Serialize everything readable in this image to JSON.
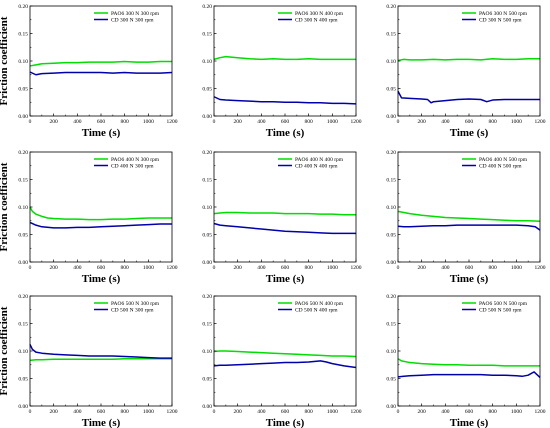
{
  "colors": {
    "pao6": "#00dd00",
    "cd": "#0000aa",
    "axis": "#000000"
  },
  "chart_data": [
    {
      "type": "line",
      "xlabel": "Time (s)",
      "ylabel": "Friction coefficient",
      "xlim": [
        0,
        1200
      ],
      "ylim": [
        0,
        0.2
      ],
      "xticks": [
        "0",
        "200",
        "400",
        "600",
        "800",
        "1000",
        "1200"
      ],
      "yticks": [
        "0.00",
        "0.05",
        "0.10",
        "0.15",
        "0.20"
      ],
      "legend_position": "top-right",
      "series": [
        {
          "name": "PAO6 300 N 300 rpm",
          "color": "#00dd00",
          "x": [
            0,
            50,
            100,
            200,
            300,
            400,
            500,
            600,
            700,
            800,
            900,
            1000,
            1100,
            1200
          ],
          "y": [
            0.091,
            0.093,
            0.095,
            0.096,
            0.097,
            0.097,
            0.098,
            0.098,
            0.098,
            0.099,
            0.098,
            0.098,
            0.099,
            0.099
          ]
        },
        {
          "name": "CD 300 N 300 rpm",
          "color": "#0000aa",
          "x": [
            0,
            50,
            100,
            200,
            300,
            400,
            500,
            600,
            700,
            800,
            900,
            1000,
            1100,
            1200
          ],
          "y": [
            0.08,
            0.075,
            0.077,
            0.078,
            0.079,
            0.079,
            0.079,
            0.079,
            0.078,
            0.079,
            0.078,
            0.078,
            0.078,
            0.079
          ]
        }
      ]
    },
    {
      "type": "line",
      "xlabel": "Time (s)",
      "ylabel": "",
      "xlim": [
        0,
        1200
      ],
      "ylim": [
        0,
        0.2
      ],
      "xticks": [
        "0",
        "200",
        "400",
        "600",
        "800",
        "1000",
        "1200"
      ],
      "yticks": [
        "0.00",
        "0.05",
        "0.10",
        "0.15",
        "0.20"
      ],
      "legend_position": "top-right",
      "series": [
        {
          "name": "PAO6 300 N 400 rpm",
          "color": "#00dd00",
          "x": [
            0,
            50,
            100,
            200,
            300,
            400,
            500,
            600,
            700,
            800,
            900,
            1000,
            1100,
            1200
          ],
          "y": [
            0.103,
            0.106,
            0.108,
            0.106,
            0.104,
            0.103,
            0.104,
            0.103,
            0.103,
            0.104,
            0.103,
            0.103,
            0.103,
            0.103
          ]
        },
        {
          "name": "CD 300 N 400 rpm",
          "color": "#0000aa",
          "x": [
            0,
            50,
            100,
            200,
            300,
            400,
            500,
            600,
            700,
            800,
            900,
            1000,
            1100,
            1200
          ],
          "y": [
            0.035,
            0.03,
            0.029,
            0.028,
            0.027,
            0.026,
            0.026,
            0.025,
            0.025,
            0.024,
            0.024,
            0.023,
            0.023,
            0.022
          ]
        }
      ]
    },
    {
      "type": "line",
      "xlabel": "Time (s)",
      "ylabel": "",
      "xlim": [
        0,
        1200
      ],
      "ylim": [
        0,
        0.2
      ],
      "xticks": [
        "0",
        "200",
        "400",
        "600",
        "800",
        "1000",
        "1200"
      ],
      "yticks": [
        "0.00",
        "0.05",
        "0.10",
        "0.15",
        "0.20"
      ],
      "legend_position": "top-right",
      "series": [
        {
          "name": "PAO6 300 N 500 rpm",
          "color": "#00dd00",
          "x": [
            0,
            50,
            100,
            200,
            300,
            400,
            500,
            600,
            700,
            800,
            900,
            1000,
            1100,
            1200
          ],
          "y": [
            0.101,
            0.103,
            0.102,
            0.102,
            0.103,
            0.102,
            0.103,
            0.103,
            0.102,
            0.104,
            0.103,
            0.103,
            0.104,
            0.104
          ]
        },
        {
          "name": "CD 300 N 500 rpm",
          "color": "#0000aa",
          "x": [
            0,
            30,
            100,
            200,
            250,
            280,
            300,
            400,
            500,
            600,
            700,
            750,
            800,
            900,
            1000,
            1100,
            1200
          ],
          "y": [
            0.045,
            0.033,
            0.032,
            0.031,
            0.03,
            0.024,
            0.026,
            0.028,
            0.03,
            0.031,
            0.03,
            0.026,
            0.029,
            0.03,
            0.03,
            0.03,
            0.03
          ]
        }
      ]
    },
    {
      "type": "line",
      "xlabel": "Time (s)",
      "ylabel": "Friction coefficient",
      "xlim": [
        0,
        1200
      ],
      "ylim": [
        0,
        0.2
      ],
      "xticks": [
        "0",
        "200",
        "400",
        "600",
        "800",
        "1000",
        "1200"
      ],
      "yticks": [
        "0.00",
        "0.05",
        "0.10",
        "0.15",
        "0.20"
      ],
      "legend_position": "top-right",
      "series": [
        {
          "name": "PAO6 400 N 300 rpm",
          "color": "#00dd00",
          "x": [
            0,
            20,
            50,
            100,
            150,
            200,
            300,
            400,
            500,
            600,
            700,
            800,
            900,
            1000,
            1100,
            1200
          ],
          "y": [
            0.1,
            0.092,
            0.087,
            0.083,
            0.08,
            0.079,
            0.078,
            0.078,
            0.077,
            0.077,
            0.078,
            0.078,
            0.079,
            0.08,
            0.08,
            0.08
          ]
        },
        {
          "name": "CD 400 N 300 rpm",
          "color": "#0000aa",
          "x": [
            0,
            50,
            100,
            200,
            300,
            400,
            500,
            600,
            700,
            800,
            900,
            1000,
            1100,
            1200
          ],
          "y": [
            0.072,
            0.067,
            0.064,
            0.062,
            0.062,
            0.063,
            0.063,
            0.064,
            0.065,
            0.066,
            0.067,
            0.068,
            0.069,
            0.069
          ]
        }
      ]
    },
    {
      "type": "line",
      "xlabel": "Time (s)",
      "ylabel": "",
      "xlim": [
        0,
        1200
      ],
      "ylim": [
        0,
        0.2
      ],
      "xticks": [
        "0",
        "200",
        "400",
        "600",
        "800",
        "1000",
        "1200"
      ],
      "yticks": [
        "0.00",
        "0.05",
        "0.10",
        "0.15",
        "0.20"
      ],
      "legend_position": "top-right",
      "series": [
        {
          "name": "PAO6 400 N 400 rpm",
          "color": "#00dd00",
          "x": [
            0,
            50,
            100,
            200,
            300,
            400,
            500,
            600,
            700,
            800,
            900,
            1000,
            1100,
            1200
          ],
          "y": [
            0.088,
            0.089,
            0.09,
            0.09,
            0.089,
            0.089,
            0.089,
            0.088,
            0.088,
            0.088,
            0.087,
            0.087,
            0.086,
            0.086
          ]
        },
        {
          "name": "CD 400 N 400 rpm",
          "color": "#0000aa",
          "x": [
            0,
            50,
            100,
            200,
            300,
            400,
            500,
            600,
            700,
            800,
            900,
            1000,
            1100,
            1200
          ],
          "y": [
            0.07,
            0.067,
            0.066,
            0.064,
            0.062,
            0.06,
            0.058,
            0.056,
            0.055,
            0.054,
            0.053,
            0.052,
            0.052,
            0.052
          ]
        }
      ]
    },
    {
      "type": "line",
      "xlabel": "Time (s)",
      "ylabel": "",
      "xlim": [
        0,
        1200
      ],
      "ylim": [
        0,
        0.2
      ],
      "xticks": [
        "0",
        "200",
        "400",
        "600",
        "800",
        "1000",
        "1200"
      ],
      "yticks": [
        "0.00",
        "0.05",
        "0.10",
        "0.15",
        "0.20"
      ],
      "legend_position": "top-right",
      "series": [
        {
          "name": "PAO6 400 N 500 rpm",
          "color": "#00dd00",
          "x": [
            0,
            50,
            100,
            200,
            300,
            400,
            500,
            600,
            700,
            800,
            900,
            1000,
            1100,
            1200
          ],
          "y": [
            0.092,
            0.09,
            0.088,
            0.085,
            0.083,
            0.081,
            0.08,
            0.079,
            0.078,
            0.077,
            0.076,
            0.075,
            0.075,
            0.074
          ]
        },
        {
          "name": "CD 400 N 500 rpm",
          "color": "#0000aa",
          "x": [
            0,
            50,
            100,
            200,
            300,
            400,
            500,
            600,
            700,
            800,
            900,
            1000,
            1100,
            1160,
            1200
          ],
          "y": [
            0.065,
            0.064,
            0.064,
            0.065,
            0.066,
            0.066,
            0.067,
            0.067,
            0.067,
            0.067,
            0.067,
            0.067,
            0.066,
            0.064,
            0.058
          ]
        }
      ]
    },
    {
      "type": "line",
      "xlabel": "Time (s)",
      "ylabel": "Friction coefficient",
      "xlim": [
        0,
        1200
      ],
      "ylim": [
        0,
        0.2
      ],
      "xticks": [
        "0",
        "200",
        "400",
        "600",
        "800",
        "1000",
        "1200"
      ],
      "yticks": [
        "0.00",
        "0.05",
        "0.10",
        "0.15",
        "0.20"
      ],
      "legend_position": "top-right",
      "series": [
        {
          "name": "PAO6 500 N 300 rpm",
          "color": "#00dd00",
          "x": [
            0,
            50,
            100,
            200,
            300,
            400,
            500,
            600,
            700,
            800,
            900,
            1000,
            1100,
            1200
          ],
          "y": [
            0.083,
            0.084,
            0.084,
            0.085,
            0.085,
            0.085,
            0.085,
            0.085,
            0.085,
            0.086,
            0.086,
            0.086,
            0.086,
            0.086
          ]
        },
        {
          "name": "CD 500 N 300 rpm",
          "color": "#0000aa",
          "x": [
            0,
            20,
            50,
            100,
            200,
            300,
            400,
            500,
            600,
            700,
            800,
            900,
            1000,
            1100,
            1200
          ],
          "y": [
            0.112,
            0.103,
            0.098,
            0.096,
            0.094,
            0.093,
            0.092,
            0.091,
            0.091,
            0.091,
            0.09,
            0.089,
            0.088,
            0.087,
            0.087
          ]
        }
      ]
    },
    {
      "type": "line",
      "xlabel": "Time (s)",
      "ylabel": "",
      "xlim": [
        0,
        1200
      ],
      "ylim": [
        0,
        0.2
      ],
      "xticks": [
        "0",
        "200",
        "400",
        "600",
        "800",
        "1000",
        "1200"
      ],
      "yticks": [
        "0.00",
        "0.05",
        "0.10",
        "0.15",
        "0.20"
      ],
      "legend_position": "top-right",
      "series": [
        {
          "name": "PAO6 500 N 400 rpm",
          "color": "#00dd00",
          "x": [
            0,
            50,
            100,
            200,
            300,
            400,
            500,
            600,
            700,
            800,
            900,
            1000,
            1100,
            1200
          ],
          "y": [
            0.099,
            0.1,
            0.1,
            0.099,
            0.098,
            0.097,
            0.096,
            0.095,
            0.094,
            0.093,
            0.092,
            0.091,
            0.091,
            0.09
          ]
        },
        {
          "name": "CD 500 N 400 rpm",
          "color": "#0000aa",
          "x": [
            0,
            50,
            100,
            200,
            300,
            400,
            500,
            600,
            700,
            800,
            900,
            950,
            1000,
            1100,
            1200
          ],
          "y": [
            0.073,
            0.074,
            0.074,
            0.075,
            0.076,
            0.077,
            0.078,
            0.079,
            0.079,
            0.08,
            0.082,
            0.08,
            0.077,
            0.073,
            0.07
          ]
        }
      ]
    },
    {
      "type": "line",
      "xlabel": "Time (s)",
      "ylabel": "",
      "xlim": [
        0,
        1200
      ],
      "ylim": [
        0,
        0.2
      ],
      "xticks": [
        "0",
        "200",
        "400",
        "600",
        "800",
        "1000",
        "1200"
      ],
      "yticks": [
        "0.00",
        "0.05",
        "0.10",
        "0.15",
        "0.20"
      ],
      "legend_position": "top-right",
      "series": [
        {
          "name": "PAO6 500 N 500 rpm",
          "color": "#00dd00",
          "x": [
            0,
            30,
            100,
            200,
            300,
            400,
            500,
            600,
            700,
            800,
            900,
            1000,
            1100,
            1200
          ],
          "y": [
            0.086,
            0.082,
            0.079,
            0.077,
            0.076,
            0.075,
            0.075,
            0.074,
            0.074,
            0.074,
            0.073,
            0.073,
            0.073,
            0.073
          ]
        },
        {
          "name": "CD 500 N 500 rpm",
          "color": "#0000aa",
          "x": [
            0,
            50,
            100,
            200,
            300,
            400,
            500,
            600,
            700,
            800,
            900,
            1000,
            1050,
            1100,
            1150,
            1200
          ],
          "y": [
            0.053,
            0.054,
            0.055,
            0.056,
            0.057,
            0.057,
            0.057,
            0.057,
            0.057,
            0.056,
            0.056,
            0.055,
            0.054,
            0.056,
            0.062,
            0.052
          ]
        }
      ]
    }
  ]
}
